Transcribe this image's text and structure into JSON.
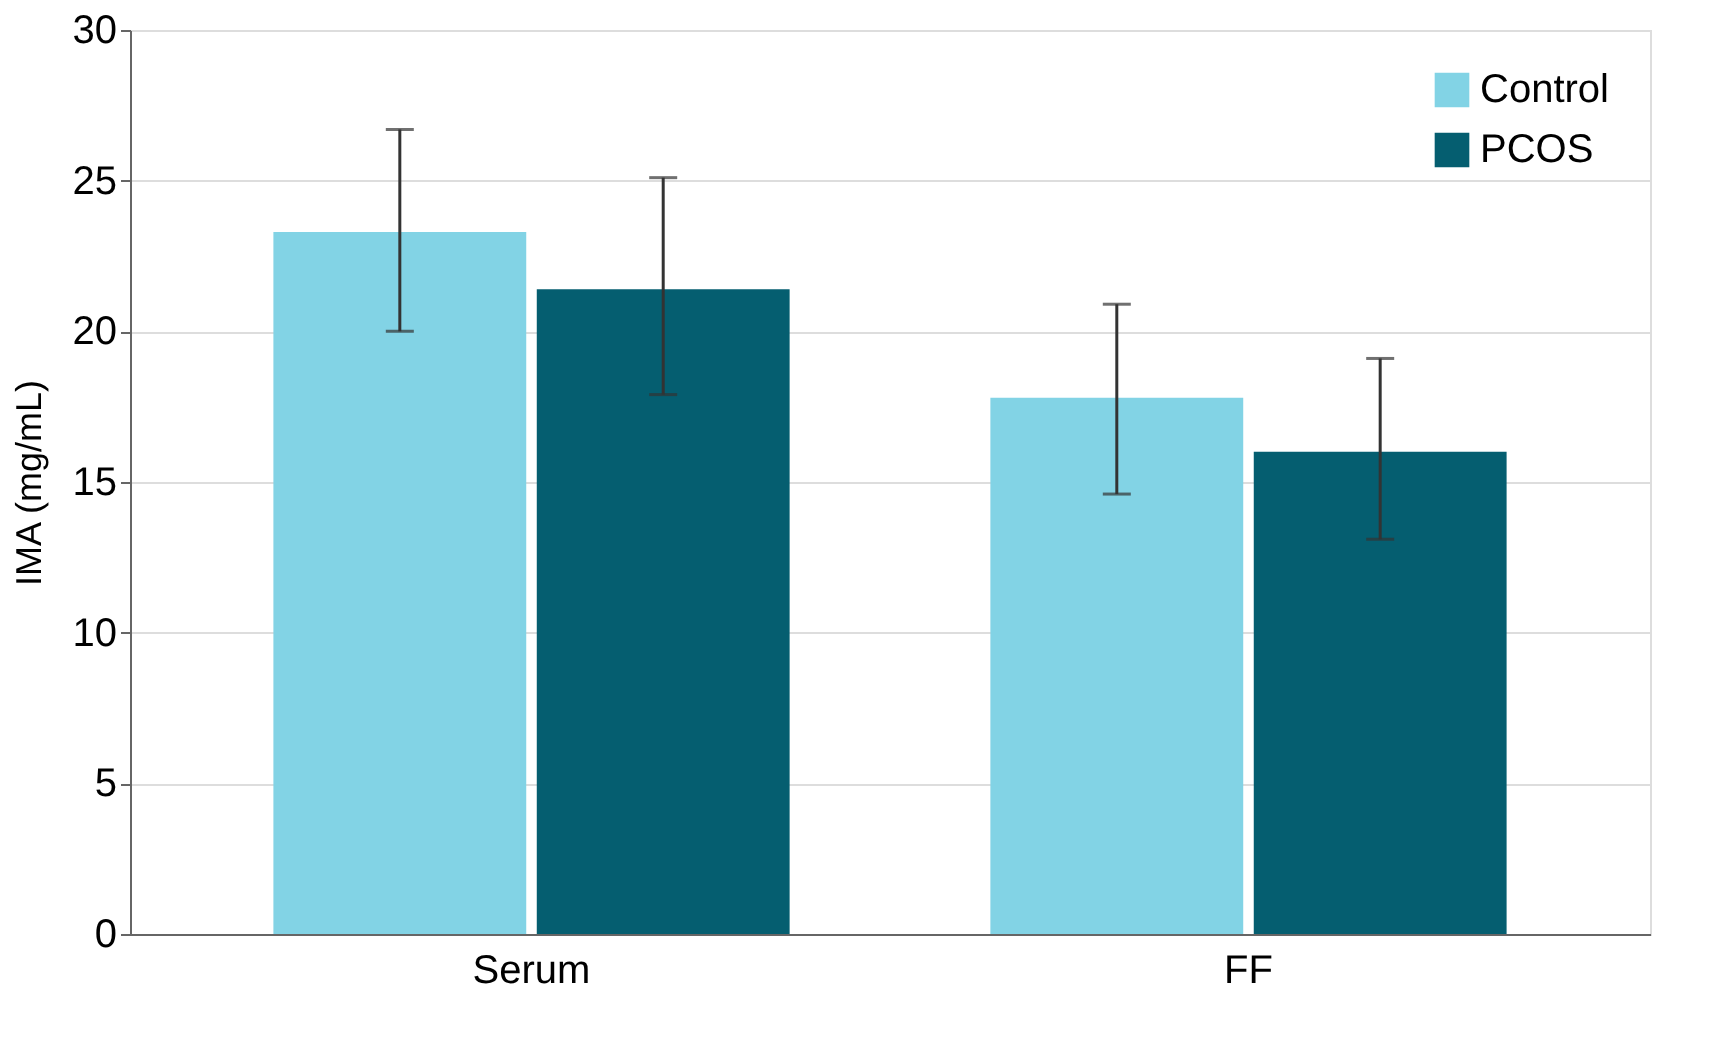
{
  "chart_data": {
    "type": "bar",
    "ylabel": "IMA (mg/mL)",
    "categories": [
      "Serum",
      "FF"
    ],
    "series": [
      {
        "name": "Control",
        "color": "#82d3e5",
        "values": [
          23.3,
          17.8
        ],
        "errors": [
          [
            20.0,
            26.7
          ],
          [
            14.6,
            20.9
          ]
        ]
      },
      {
        "name": "PCOS",
        "color": "#055e70",
        "values": [
          21.4,
          16.0
        ],
        "errors": [
          [
            17.9,
            25.1
          ],
          [
            13.1,
            19.1
          ]
        ]
      }
    ],
    "ylim": [
      0,
      30
    ],
    "yticks": [
      0,
      5,
      10,
      15,
      20,
      25,
      30
    ],
    "grid": "y",
    "legend": "top right"
  }
}
